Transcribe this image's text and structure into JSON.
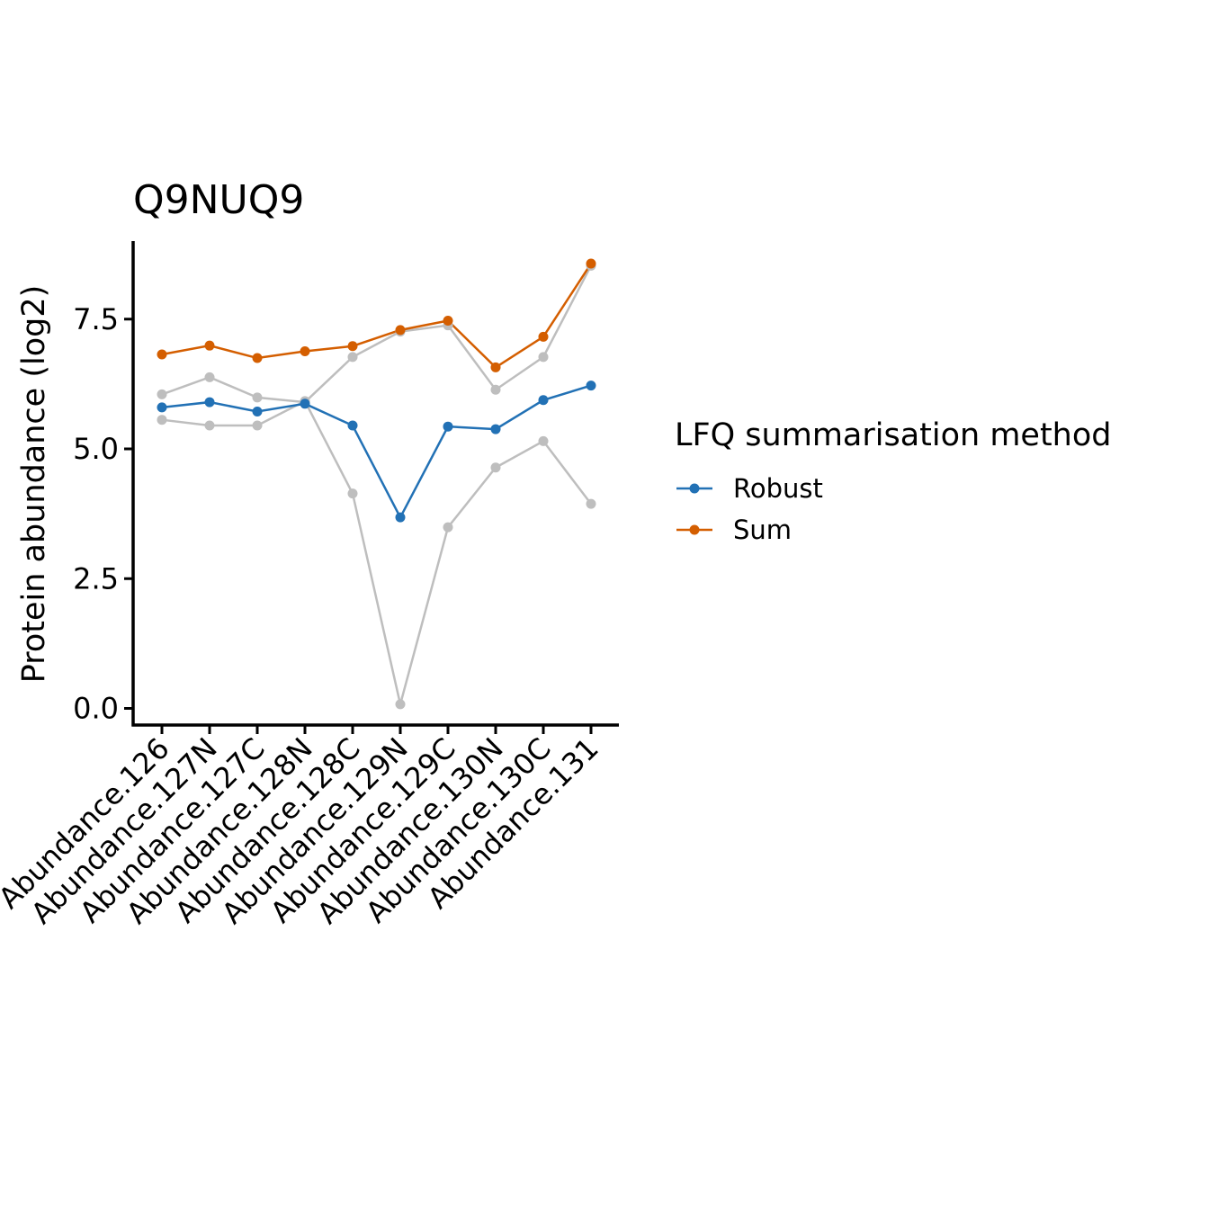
{
  "chart_data": {
    "type": "line",
    "title": "Q9NUQ9",
    "xlabel": "",
    "ylabel": "Protein abundance (log2)",
    "categories": [
      "Abundance.126",
      "Abundance.127N",
      "Abundance.127C",
      "Abundance.128N",
      "Abundance.128C",
      "Abundance.129N",
      "Abundance.129C",
      "Abundance.130N",
      "Abundance.130C",
      "Abundance.131"
    ],
    "ylim": [
      0,
      9
    ],
    "yticks": [
      "0.0",
      "2.5",
      "5.0",
      "7.5"
    ],
    "grid": false,
    "legend_position": "right",
    "legend_title": "LFQ summarisation method",
    "series": [
      {
        "name": "Robust",
        "color": "#2271b5",
        "values": [
          5.8,
          5.9,
          5.72,
          5.87,
          5.45,
          3.68,
          5.43,
          5.38,
          5.94,
          6.22
        ]
      },
      {
        "name": "Sum",
        "color": "#d45e00",
        "values": [
          6.82,
          6.99,
          6.75,
          6.88,
          6.98,
          7.29,
          7.47,
          6.57,
          7.16,
          8.57
        ]
      }
    ],
    "peptide_series": [
      {
        "color": "#bebebe",
        "values": [
          6.05,
          6.38,
          5.99,
          5.9,
          6.77,
          7.26,
          7.38,
          6.14,
          6.77,
          8.53
        ]
      },
      {
        "color": "#bebebe",
        "values": [
          5.56,
          5.45,
          5.45,
          5.92,
          4.14,
          0.08,
          3.49,
          4.64,
          5.15,
          3.94
        ]
      }
    ]
  }
}
